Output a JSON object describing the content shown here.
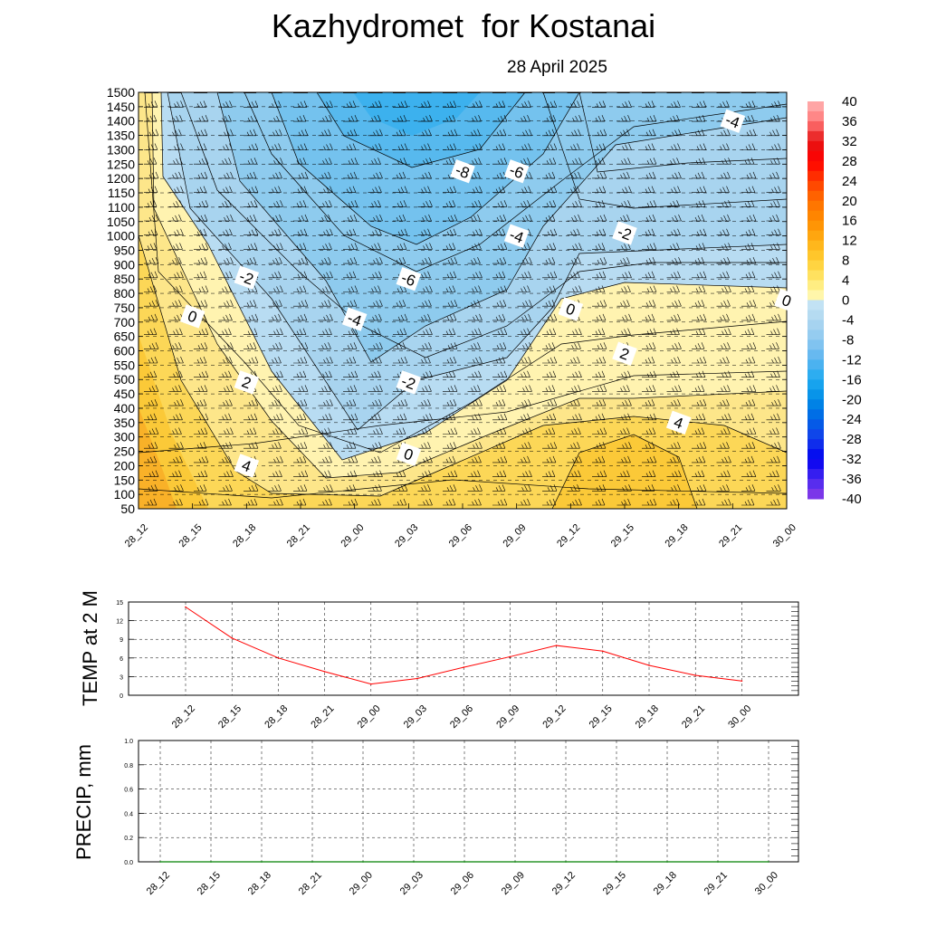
{
  "header": {
    "title": "Kazhydromet  for Kostanai",
    "date": "28 April 2025"
  },
  "time_labels": [
    "28_12",
    "28_15",
    "28_18",
    "28_21",
    "29_00",
    "29_03",
    "29_06",
    "29_09",
    "29_12",
    "29_15",
    "29_18",
    "29_21",
    "30_00"
  ],
  "chart_data": [
    {
      "type": "heatmap",
      "title": "",
      "xlabel": "",
      "ylabel": "",
      "x": [
        "28_12",
        "28_15",
        "28_18",
        "28_21",
        "29_00",
        "29_03",
        "29_06",
        "29_09",
        "29_12",
        "29_15",
        "29_18",
        "29_21",
        "30_00"
      ],
      "y_ticks": [
        50,
        100,
        150,
        200,
        250,
        300,
        350,
        400,
        450,
        500,
        550,
        600,
        650,
        700,
        750,
        800,
        850,
        900,
        950,
        1000,
        1050,
        1100,
        1150,
        1200,
        1250,
        1300,
        1350,
        1400,
        1450,
        1500
      ],
      "ylim": [
        50,
        1500
      ],
      "colorbar": {
        "min": -40,
        "max": 40,
        "tick_labels": [
          40,
          36,
          32,
          28,
          24,
          20,
          16,
          12,
          8,
          4,
          0,
          -4,
          -8,
          -12,
          -16,
          -20,
          -24,
          -28,
          -32,
          -36,
          -40
        ]
      },
      "contour_labels": [
        {
          "value": "-4",
          "x": "29_21",
          "y": 1400
        },
        {
          "value": "-8",
          "x": "29_06",
          "y": 1225
        },
        {
          "value": "-6",
          "x": "29_09",
          "y": 1225
        },
        {
          "value": "-2",
          "x": "29_15",
          "y": 1010
        },
        {
          "value": "-4",
          "x": "29_09",
          "y": 1000
        },
        {
          "value": "-6",
          "x": "29_03",
          "y": 850
        },
        {
          "value": "-2",
          "x": "28_18",
          "y": 855
        },
        {
          "value": "0",
          "x": "28_15",
          "y": 720
        },
        {
          "value": "-4",
          "x": "29_00",
          "y": 710
        },
        {
          "value": "0",
          "x": "29_12",
          "y": 745
        },
        {
          "value": "0",
          "x": "30_00",
          "y": 775
        },
        {
          "value": "2",
          "x": "29_15",
          "y": 590
        },
        {
          "value": "2",
          "x": "28_18",
          "y": 490
        },
        {
          "value": "-2",
          "x": "29_03",
          "y": 490
        },
        {
          "value": "4",
          "x": "29_18",
          "y": 350
        },
        {
          "value": "0",
          "x": "29_03",
          "y": 240
        },
        {
          "value": "4",
          "x": "28_18",
          "y": 200
        }
      ]
    },
    {
      "type": "line",
      "ylabel": "TEMP at 2 M",
      "ylim": [
        0,
        15
      ],
      "y_ticks": [
        0,
        3,
        6,
        9,
        12,
        15
      ],
      "x": [
        "28_12",
        "28_15",
        "28_18",
        "28_21",
        "29_00",
        "29_03",
        "29_06",
        "29_09",
        "29_12",
        "29_15",
        "29_18",
        "29_21",
        "30_00"
      ],
      "values": [
        14.2,
        9.2,
        6.0,
        3.8,
        1.8,
        2.7,
        4.5,
        6.2,
        8.0,
        7.1,
        4.8,
        3.2,
        2.3
      ],
      "color": "#ff0000"
    },
    {
      "type": "line",
      "ylabel": "PRECIP, mm",
      "ylim": [
        0,
        1.0
      ],
      "y_ticks": [
        "0.0",
        "0.2",
        "0.4",
        "0.6",
        "0.8",
        "1.0"
      ],
      "x": [
        "28_12",
        "28_15",
        "28_18",
        "28_21",
        "29_00",
        "29_03",
        "29_06",
        "29_09",
        "29_12",
        "29_15",
        "29_18",
        "29_21",
        "30_00"
      ],
      "values": [
        0,
        0,
        0,
        0,
        0,
        0,
        0,
        0,
        0,
        0,
        0,
        0,
        0
      ],
      "color": "#008000"
    }
  ]
}
